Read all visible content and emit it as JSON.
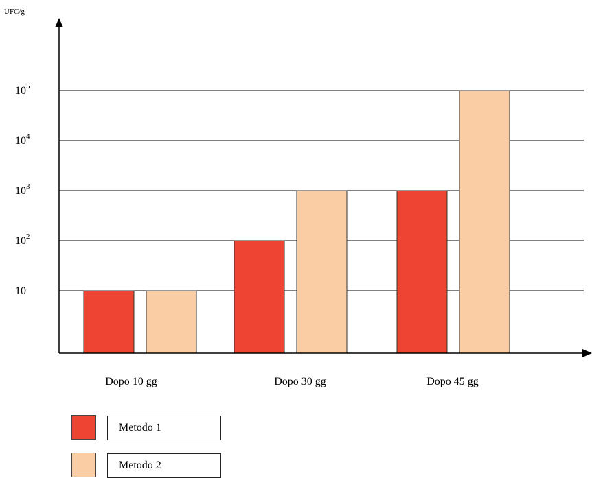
{
  "chart_data": {
    "type": "bar",
    "ylabel": "UFC/g",
    "yscale": "log",
    "ylim": [
      1,
      1000000
    ],
    "yticks": [
      {
        "base": "10",
        "exp": ""
      },
      {
        "base": "10",
        "exp": "2"
      },
      {
        "base": "10",
        "exp": "3"
      },
      {
        "base": "10",
        "exp": "4"
      },
      {
        "base": "10",
        "exp": "5"
      }
    ],
    "ytick_values": [
      10,
      100,
      1000,
      10000,
      100000
    ],
    "categories": [
      "Dopo 10 gg",
      "Dopo 30 gg",
      "Dopo 45 gg"
    ],
    "series": [
      {
        "name": "Metodo 1",
        "color": "#ee4433",
        "values": [
          10,
          100,
          1000
        ]
      },
      {
        "name": "Metodo 2",
        "color": "#fbcda4",
        "values": [
          10,
          1000,
          100000
        ]
      }
    ],
    "grid": true,
    "legend_position": "bottom-left"
  }
}
